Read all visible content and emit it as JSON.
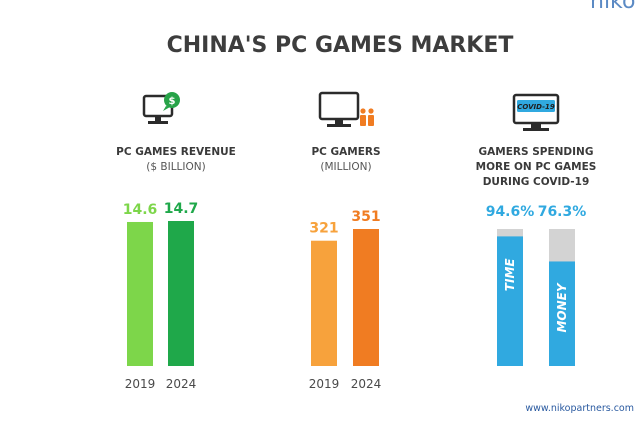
{
  "logo_text": "niko",
  "title": "CHINA'S PC GAMES MARKET",
  "footer_url": "www.nikopartners.com",
  "icon_badge_text": "COVID-19",
  "icons": {
    "revenue": "monitor-dollar-icon",
    "gamers": "monitor-people-icon",
    "covid": "monitor-covid-icon"
  },
  "colors": {
    "revenue_2019": "#7dd64a",
    "revenue_2024": "#1fa84a",
    "gamers_2019": "#f7a23c",
    "gamers_2024": "#f07c22",
    "covid_bar": "#30a9e0",
    "covid_bg": "#d3d3d3",
    "title": "#3d3d3d"
  },
  "chart_data": [
    {
      "type": "bar",
      "headline": [
        "PC GAMES REVENUE"
      ],
      "unit_label": "($ BILLION)",
      "categories": [
        "2019",
        "2024"
      ],
      "values": [
        14.6,
        14.7
      ],
      "value_labels": [
        "14.6",
        "14.7"
      ]
    },
    {
      "type": "bar",
      "headline": [
        "PC GAMERS"
      ],
      "unit_label": "(MILLION)",
      "categories": [
        "2019",
        "2024"
      ],
      "values": [
        321,
        351
      ],
      "value_labels": [
        "321",
        "351"
      ]
    },
    {
      "type": "bar",
      "headline": [
        "GAMERS SPENDING",
        "MORE ON PC GAMES",
        "DURING COVID-19"
      ],
      "unit_label": "",
      "categories": [
        "TIME",
        "MONEY"
      ],
      "values": [
        94.6,
        76.3
      ],
      "value_labels": [
        "94.6%",
        "76.3%"
      ],
      "ylim": [
        0,
        100
      ]
    }
  ]
}
